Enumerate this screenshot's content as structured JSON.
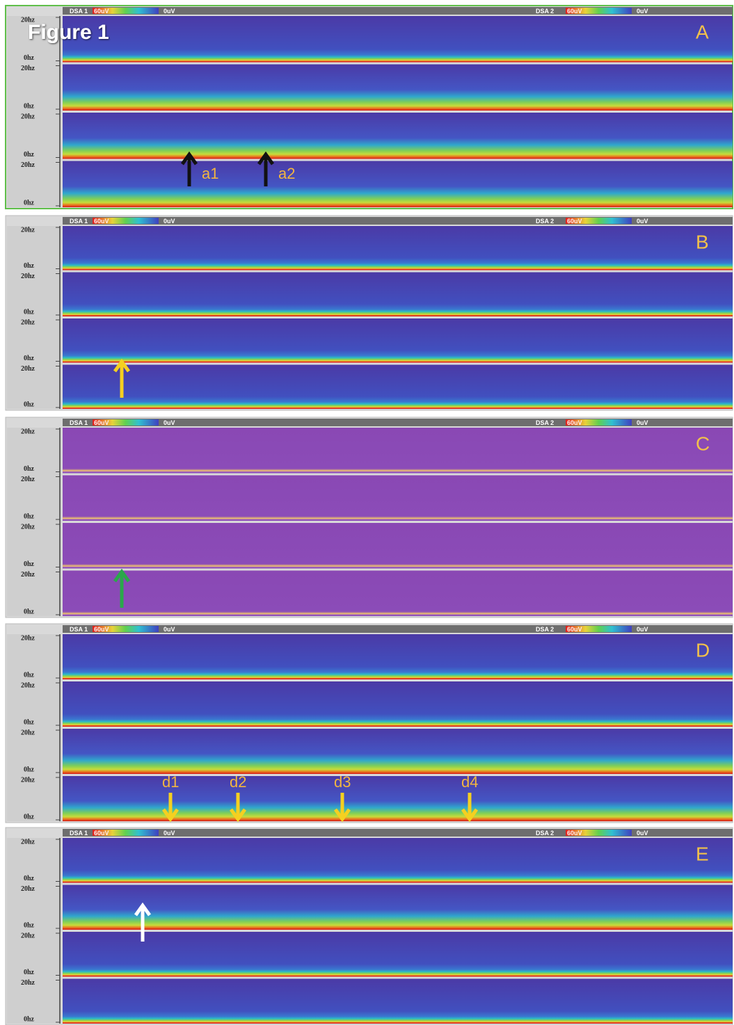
{
  "title": "Figure 1",
  "panels": [
    {
      "letter": "A",
      "header": [
        "DSA 1",
        "60uV",
        "0uV",
        "DSA 2",
        "60uV",
        "0uV"
      ],
      "strips": [
        {
          "top": "20hz",
          "bottom": "0hz"
        },
        {
          "top": "20hz",
          "bottom": "0hz"
        },
        {
          "top": "20hz",
          "bottom": "0hz"
        },
        {
          "top": "20hz",
          "bottom": "0hz"
        }
      ],
      "annotations": [
        "a1",
        "a2"
      ]
    },
    {
      "letter": "B",
      "header": [
        "DSA 1",
        "60uV",
        "0uV",
        "DSA 2",
        "60uV",
        "0uV"
      ],
      "strips": [
        {
          "top": "20hz",
          "bottom": "0hz"
        },
        {
          "top": "20hz",
          "bottom": "0hz"
        },
        {
          "top": "20hz",
          "bottom": "0hz"
        },
        {
          "top": "20hz",
          "bottom": "0hz"
        }
      ]
    },
    {
      "letter": "C",
      "header": [
        "DSA 1",
        "60uV",
        "0uV",
        "DSA 2",
        "60uV",
        "0uV"
      ],
      "strips": [
        {
          "top": "20hz",
          "bottom": "0hz"
        },
        {
          "top": "20hz",
          "bottom": "0hz"
        },
        {
          "top": "20hz",
          "bottom": "0hz"
        },
        {
          "top": "20hz",
          "bottom": "0hz"
        }
      ]
    },
    {
      "letter": "D",
      "header": [
        "DSA 1",
        "60uV",
        "0uV",
        "DSA 2",
        "60uV",
        "0uV"
      ],
      "strips": [
        {
          "top": "20hz",
          "bottom": "0hz"
        },
        {
          "top": "20hz",
          "bottom": "0hz"
        },
        {
          "top": "20hz",
          "bottom": "0hz"
        },
        {
          "top": "20hz",
          "bottom": "0hz"
        }
      ],
      "annotations": [
        "d1",
        "d2",
        "d3",
        "d4"
      ]
    },
    {
      "letter": "E",
      "header": [
        "DSA 1",
        "60uV",
        "0uV",
        "DSA 2",
        "60uV",
        "0uV"
      ],
      "strips": [
        {
          "top": "20hz",
          "bottom": "0hz"
        },
        {
          "top": "20hz",
          "bottom": "0hz"
        },
        {
          "top": "20hz",
          "bottom": "0hz"
        },
        {
          "top": "20hz",
          "bottom": "0hz"
        }
      ]
    }
  ]
}
